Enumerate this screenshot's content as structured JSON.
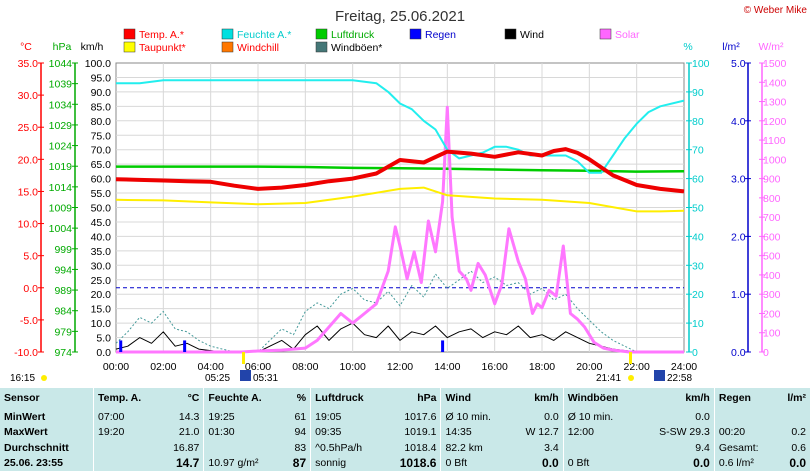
{
  "title": "Freitag, 25.06.2021",
  "credit": "© Weber Mike",
  "legend": [
    {
      "label": "Temp. A.*",
      "color": "#ff0000"
    },
    {
      "label": "Feuchte A.*",
      "color": "#00e0e0"
    },
    {
      "label": "Luftdruck",
      "color": "#00cc00"
    },
    {
      "label": "Regen",
      "color": "#0000ff"
    },
    {
      "label": "Wind",
      "color": "#000000"
    },
    {
      "label": "Solar",
      "color": "#ff66ff"
    },
    {
      "label": "Taupunkt*",
      "color": "#ffff00"
    },
    {
      "label": "Windchill",
      "color": "#ff7700"
    },
    {
      "label": "Windböen*",
      "color": "#447777"
    }
  ],
  "axes": {
    "temp": {
      "unit": "°C",
      "ticks": [
        "35.0",
        "30.0",
        "25.0",
        "20.0",
        "15.0",
        "10.0",
        "5.0",
        "0.0",
        "-5.0",
        "-10.0"
      ],
      "color": "#ff0000"
    },
    "press": {
      "unit": "hPa",
      "ticks": [
        "1044",
        "1039",
        "1034",
        "1029",
        "1024",
        "1019",
        "1014",
        "1009",
        "1004",
        "999",
        "994",
        "989",
        "984",
        "979",
        "974"
      ],
      "color": "#00aa00"
    },
    "wind": {
      "unit": "km/h",
      "ticks": [
        "100.0",
        "95.0",
        "90.0",
        "85.0",
        "80.0",
        "75.0",
        "70.0",
        "65.0",
        "60.0",
        "55.0",
        "50.0",
        "45.0",
        "40.0",
        "35.0",
        "30.0",
        "25.0",
        "20.0",
        "15.0",
        "10.0",
        "5.0",
        "0.0"
      ],
      "color": "#000000"
    },
    "hum": {
      "unit": "%",
      "ticks": [
        "100",
        "90",
        "80",
        "70",
        "60",
        "50",
        "40",
        "30",
        "20",
        "10",
        "0"
      ],
      "color": "#00cccc"
    },
    "rain": {
      "unit": "l/m²",
      "ticks": [
        "5.0",
        "4.0",
        "3.0",
        "2.0",
        "1.0",
        "0.0"
      ],
      "color": "#0000cc"
    },
    "solar": {
      "unit": "W/m²",
      "ticks": [
        "1500",
        "1400",
        "1300",
        "1200",
        "1100",
        "1000",
        "900",
        "800",
        "700",
        "600",
        "500",
        "400",
        "300",
        "200",
        "100",
        "0"
      ],
      "color": "#ff66ff"
    },
    "x": {
      "ticks": [
        "00:00",
        "02:00",
        "04:00",
        "06:00",
        "08:00",
        "10:00",
        "12:00",
        "14:00",
        "16:00",
        "18:00",
        "20:00",
        "22:00",
        "24:00"
      ]
    }
  },
  "time_marks": [
    {
      "text": "16:15"
    },
    {
      "text": "05:25"
    },
    {
      "text": "05:31"
    },
    {
      "text": "21:41"
    },
    {
      "text": "22:58"
    }
  ],
  "chart_data": {
    "type": "line",
    "x_unit": "hour",
    "series": [
      {
        "name": "Temp. A.*",
        "axis": "temp",
        "x": [
          0,
          1,
          2,
          3,
          4,
          5,
          6,
          7,
          8,
          9,
          10,
          11,
          12,
          12.5,
          13,
          14,
          15,
          16,
          17,
          18,
          18.5,
          19,
          19.5,
          20,
          21,
          22,
          23,
          24
        ],
        "values": [
          16.9,
          16.8,
          16.7,
          16.6,
          16.5,
          15.9,
          15.4,
          15.6,
          16.0,
          16.6,
          17.0,
          17.8,
          19.9,
          19.7,
          19.5,
          21.2,
          20.9,
          20.4,
          21.1,
          20.6,
          21.3,
          21.6,
          21.0,
          20.0,
          17.5,
          16.0,
          15.4,
          15.0
        ]
      },
      {
        "name": "Taupunkt*",
        "axis": "temp",
        "x": [
          0,
          2,
          4,
          6,
          8,
          10,
          12,
          13,
          14,
          16,
          18,
          20,
          22,
          23,
          24
        ],
        "values": [
          13.7,
          13.6,
          13.3,
          13.0,
          13.2,
          14.2,
          15.4,
          15.6,
          14.4,
          13.9,
          13.7,
          13.2,
          11.9,
          11.9,
          12.0
        ]
      },
      {
        "name": "Feuchte A.*",
        "axis": "hum",
        "x": [
          0,
          1,
          2,
          3,
          4,
          5,
          6,
          7,
          8,
          9,
          10,
          11,
          11.5,
          12,
          12.5,
          13,
          13.5,
          14,
          14.5,
          15,
          15.5,
          16,
          16.5,
          17,
          17.5,
          18,
          19,
          19.5,
          20,
          20.5,
          21,
          21.5,
          22,
          22.5,
          23,
          24
        ],
        "values": [
          93,
          93,
          94,
          94,
          94,
          94,
          94,
          94,
          94,
          94,
          94,
          93,
          90,
          86,
          84,
          80,
          77,
          70,
          67,
          68,
          69,
          71,
          71,
          70,
          68,
          68,
          68,
          66,
          62,
          62,
          68,
          74,
          79,
          83,
          85,
          87
        ]
      },
      {
        "name": "Luftdruck",
        "axis": "press",
        "x": [
          0,
          2,
          4,
          6,
          8,
          10,
          12,
          14,
          16,
          18,
          20,
          22,
          24
        ],
        "values": [
          1018.9,
          1018.9,
          1018.9,
          1018.9,
          1018.8,
          1018.6,
          1018.5,
          1018.4,
          1018.2,
          1018.0,
          1017.9,
          1017.7,
          1017.8
        ]
      },
      {
        "name": "Solar",
        "axis": "solar",
        "x": [
          0,
          5.3,
          6,
          7,
          8,
          8.5,
          9,
          9.5,
          10,
          10.5,
          11,
          11.5,
          11.8,
          12,
          12.3,
          12.6,
          12.9,
          13.2,
          13.5,
          13.8,
          14.0,
          14.2,
          14.5,
          14.8,
          15,
          15.3,
          15.6,
          16,
          16.3,
          16.6,
          17,
          17.3,
          17.6,
          17.8,
          18,
          18.3,
          18.6,
          18.9,
          19.2,
          19.5,
          19.8,
          20.2,
          20.6,
          21,
          21.7,
          24
        ],
        "values": [
          0,
          0,
          5,
          10,
          20,
          60,
          130,
          200,
          150,
          200,
          250,
          420,
          650,
          550,
          380,
          520,
          360,
          680,
          520,
          780,
          1270,
          700,
          420,
          380,
          320,
          460,
          400,
          250,
          350,
          640,
          470,
          380,
          200,
          250,
          230,
          320,
          290,
          550,
          200,
          170,
          130,
          50,
          20,
          10,
          0,
          0
        ]
      },
      {
        "name": "Wind",
        "axis": "wind",
        "x": [
          0,
          0.5,
          1,
          1.5,
          2,
          2.5,
          3,
          3.5,
          4,
          4.5,
          5,
          6,
          6.5,
          7,
          7.5,
          8,
          8.5,
          9,
          9.5,
          10,
          10.5,
          11,
          11.5,
          12,
          12.5,
          13,
          13.5,
          14,
          14.5,
          15,
          15.5,
          16,
          16.5,
          17,
          17.5,
          18,
          18.5,
          19,
          19.5,
          20,
          20.5,
          21,
          22,
          24
        ],
        "values": [
          1,
          2,
          5,
          3,
          7,
          2,
          3,
          1,
          0.5,
          0,
          0,
          0,
          2,
          4,
          1,
          6,
          9,
          4,
          8,
          10,
          6,
          5,
          9,
          4,
          7,
          6,
          9,
          5,
          7,
          8,
          5,
          7,
          6,
          9,
          5,
          6,
          4,
          7,
          5,
          3,
          2,
          1,
          0,
          0
        ]
      },
      {
        "name": "Windböen*",
        "axis": "wind",
        "x": [
          0,
          0.5,
          1,
          1.5,
          2,
          2.5,
          3,
          3.5,
          4,
          4.5,
          5,
          6,
          6.5,
          7,
          7.5,
          8,
          8.5,
          9,
          9.5,
          10,
          10.5,
          11,
          11.5,
          12,
          12.5,
          13,
          13.5,
          14,
          14.5,
          15,
          15.5,
          16,
          16.5,
          17,
          17.5,
          18,
          18.5,
          19,
          19.5,
          20,
          20.5,
          21,
          22,
          24
        ],
        "values": [
          3,
          7,
          12,
          10,
          14,
          8,
          7,
          4,
          2,
          1,
          0,
          0,
          4,
          8,
          6,
          14,
          17,
          15,
          20,
          22,
          18,
          17,
          21,
          16,
          23,
          19,
          27,
          22,
          25,
          28,
          24,
          26,
          23,
          24,
          20,
          22,
          18,
          20,
          15,
          11,
          7,
          4,
          0,
          0
        ]
      },
      {
        "name": "Regen",
        "axis": "rain",
        "x": [
          0.2,
          2.9,
          13.8
        ],
        "values": [
          0.2,
          0.2,
          0.2
        ]
      }
    ]
  },
  "stats": {
    "headers": [
      "Sensor",
      "Temp. A.",
      "°C",
      "Feuchte A.",
      "%",
      "Luftdruck",
      "hPa",
      "Wind",
      "km/h",
      "Windböen",
      "km/h",
      "Regen",
      "l/m²"
    ],
    "rows": [
      [
        "MinWert",
        "07:00",
        "14.3",
        "19:25",
        "61",
        "19:05",
        "1017.6",
        "Ø 10 min.",
        "0.0",
        "Ø 10 min.",
        "0.0",
        "",
        ""
      ],
      [
        "MaxWert",
        "19:20",
        "21.0",
        "01:30",
        "94",
        "09:35",
        "1019.1",
        "14:35",
        "W 12.7",
        "12:00",
        "S-SW 29.3",
        "00:20",
        "0.2"
      ],
      [
        "Durchschnitt",
        "",
        "16.87",
        "",
        "83",
        "^0.5hPa/h",
        "1018.4",
        "82.2 km",
        "3.4",
        "",
        "9.4",
        "Gesamt:",
        "0.6"
      ],
      [
        "25.06.  23:55",
        "",
        "14.7",
        "10.97 g/m²",
        "87",
        "sonnig",
        "1018.6",
        "0 Bft",
        "0.0",
        "0 Bft",
        "0.0",
        "0.6 l/m²",
        "0.0"
      ]
    ]
  }
}
